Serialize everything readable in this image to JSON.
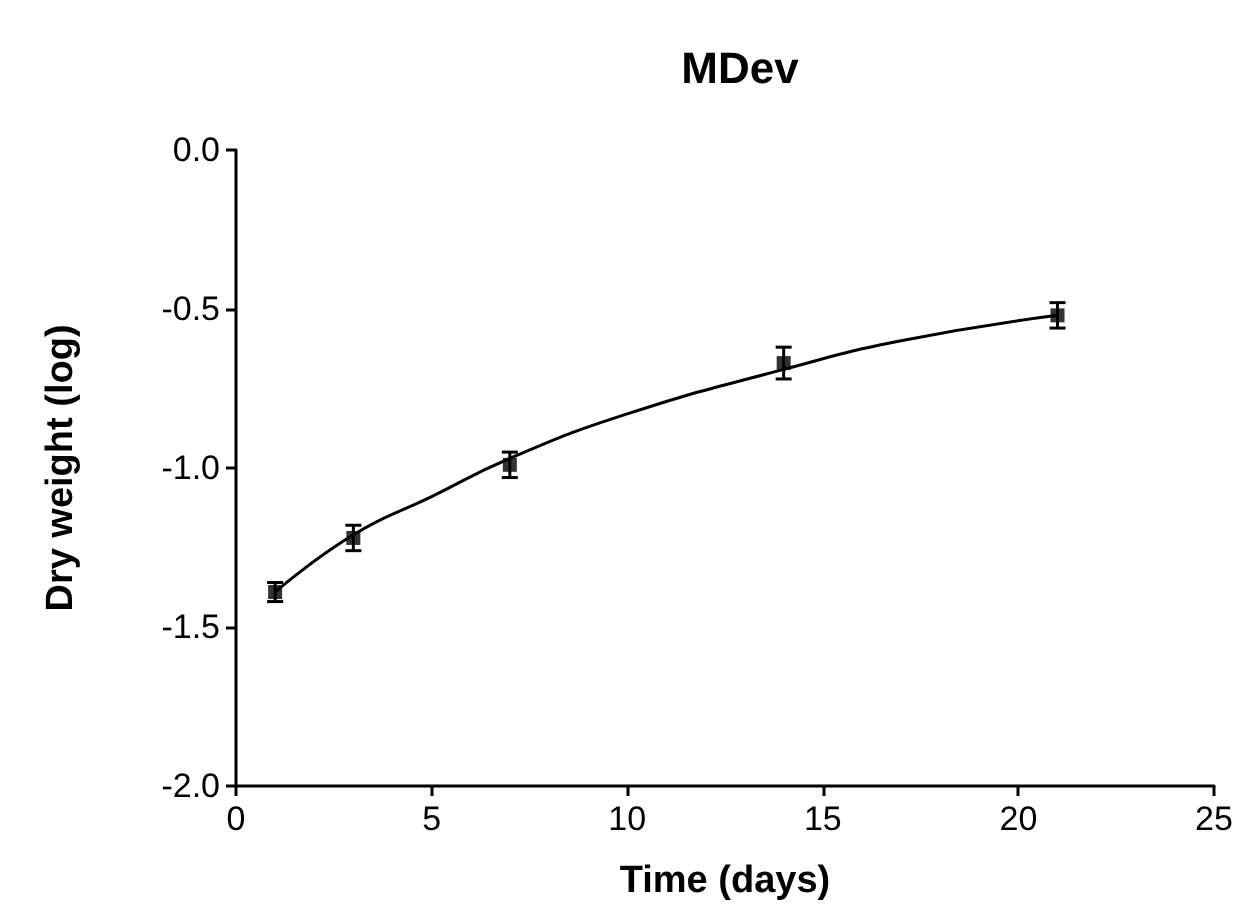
{
  "chart_data": {
    "type": "scatter",
    "title": "MDev",
    "xlabel": "Time (days)",
    "ylabel": "Dry weight (log)",
    "x": [
      1,
      3,
      7,
      14,
      21
    ],
    "series": [
      {
        "color": "#000000",
        "marker": "square",
        "values": [
          -1.39,
          -1.22,
          -0.99,
          -0.67,
          -0.52
        ],
        "errors": [
          0.03,
          0.04,
          0.04,
          0.05,
          0.04
        ]
      },
      {
        "type": "line",
        "color": "#000000",
        "marker": "none",
        "x": [
          1,
          3,
          5,
          7,
          10,
          14,
          17,
          21
        ],
        "values": [
          -1.39,
          -1.21,
          -1.09,
          -0.97,
          -0.83,
          -0.69,
          -0.6,
          -0.52
        ]
      }
    ],
    "xlim": [
      0,
      25
    ],
    "xticks": [
      0,
      5,
      10,
      15,
      20,
      25
    ],
    "ylim": [
      -2,
      0
    ],
    "yticks": [
      {
        "value": -2,
        "label": "-2.0"
      },
      {
        "value": -1.5,
        "label": "-1.5"
      },
      {
        "value": -1,
        "label": "-1.0"
      },
      {
        "value": -0.5,
        "label": "-0.5"
      },
      {
        "value": 0,
        "label": "0.0"
      }
    ],
    "grid": false
  }
}
